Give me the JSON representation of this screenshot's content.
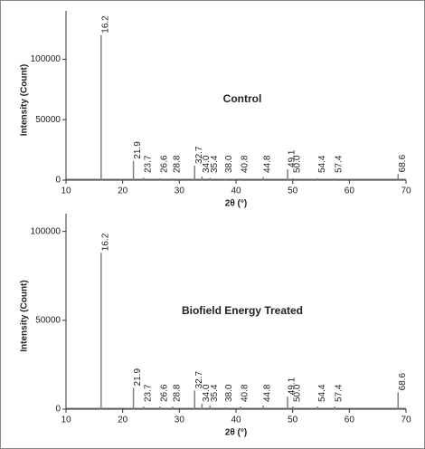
{
  "chart_data": [
    {
      "type": "stem",
      "annotation": "Control",
      "xlabel": "2θ (°)",
      "ylabel": "Intensity (Count)",
      "color": "#7f7f7f",
      "x": [
        16.2,
        21.9,
        23.7,
        26.6,
        28.8,
        32.7,
        34.0,
        35.4,
        38.0,
        40.8,
        44.8,
        49.1,
        50.0,
        54.4,
        57.4,
        68.6
      ],
      "x_labels": [
        "16.2",
        "21.9",
        "23.7",
        "26.6",
        "28.8",
        "32.7",
        "34.0",
        "35.4",
        "38.0",
        "40.8",
        "44.8",
        "49.1",
        "50.0",
        "54.4",
        "57.4",
        "68.6"
      ],
      "values": [
        120000,
        16000,
        2000,
        1500,
        1500,
        12000,
        3000,
        2000,
        1000,
        1500,
        2500,
        9000,
        1500,
        1500,
        1500,
        5000
      ],
      "xlim": [
        10,
        70
      ],
      "xticks": [
        10,
        20,
        30,
        40,
        50,
        60,
        70
      ],
      "ylim": [
        0,
        140000
      ],
      "yticks": [
        0,
        50000,
        100000
      ]
    },
    {
      "type": "stem",
      "annotation": "Biofield Energy Treated",
      "xlabel": "2θ (°)",
      "ylabel": "Intensity (Count)",
      "color": "#7f7f7f",
      "x": [
        16.2,
        21.9,
        23.7,
        26.6,
        28.8,
        32.7,
        34.0,
        35.4,
        38.0,
        40.8,
        44.8,
        49.1,
        50.0,
        54.4,
        57.4,
        68.6
      ],
      "x_labels": [
        "16.2",
        "21.9",
        "23.7",
        "26.6",
        "28.8",
        "32.7",
        "34.0",
        "35.4",
        "38.0",
        "40.8",
        "44.8",
        "49.1",
        "50.0",
        "54.4",
        "57.4",
        "68.6"
      ],
      "values": [
        88000,
        12000,
        1500,
        1500,
        1500,
        10500,
        3000,
        2000,
        1000,
        1500,
        2000,
        7000,
        1500,
        1500,
        1500,
        9500
      ],
      "xlim": [
        10,
        70
      ],
      "xticks": [
        10,
        20,
        30,
        40,
        50,
        60,
        70
      ],
      "ylim": [
        0,
        110000
      ],
      "yticks": [
        0,
        50000,
        100000
      ]
    }
  ]
}
